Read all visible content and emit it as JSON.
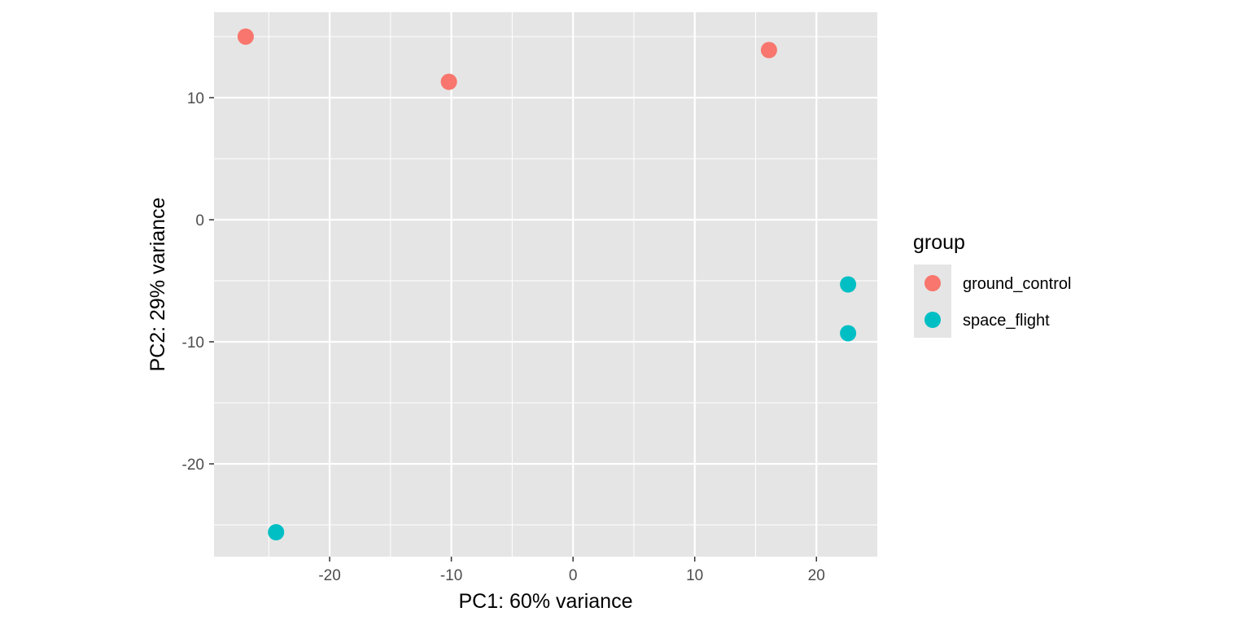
{
  "chart_data": {
    "type": "scatter",
    "title": "",
    "xlabel": "PC1: 60% variance",
    "ylabel": "PC2: 29% variance",
    "xlim": [
      -29.5,
      25
    ],
    "ylim": [
      -27.6,
      17
    ],
    "x_ticks": [
      -20,
      -10,
      0,
      10,
      20
    ],
    "x_tick_labels": [
      "-20",
      "-10",
      "0",
      "10",
      "20"
    ],
    "y_ticks": [
      -20,
      -10,
      0,
      10
    ],
    "y_tick_labels": [
      "-20",
      "-10",
      "0",
      "10"
    ],
    "grid": true,
    "legend_title": "group",
    "legend_position": "right",
    "series": [
      {
        "name": "ground_control",
        "color": "#F8766D",
        "points": [
          {
            "x": -26.9,
            "y": 15.0
          },
          {
            "x": -10.2,
            "y": 11.3
          },
          {
            "x": 16.1,
            "y": 13.9
          }
        ]
      },
      {
        "name": "space_flight",
        "color": "#00BFC4",
        "points": [
          {
            "x": 22.6,
            "y": -5.3
          },
          {
            "x": 22.6,
            "y": -9.3
          },
          {
            "x": -24.4,
            "y": -25.6
          }
        ]
      }
    ]
  }
}
